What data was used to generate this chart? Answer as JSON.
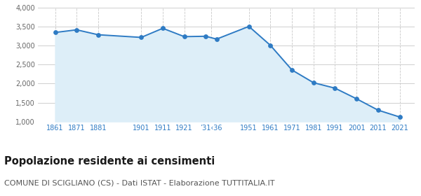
{
  "years": [
    1861,
    1871,
    1881,
    1901,
    1911,
    1921,
    1931,
    1936,
    1951,
    1961,
    1971,
    1981,
    1991,
    2001,
    2011,
    2021
  ],
  "population": [
    3350,
    3420,
    3290,
    3220,
    3460,
    3240,
    3250,
    3175,
    3510,
    3010,
    2360,
    2025,
    1880,
    1600,
    1300,
    1120
  ],
  "x_tick_positions": [
    1861,
    1871,
    1881,
    1901,
    1911,
    1921,
    1933.5,
    1951,
    1961,
    1971,
    1981,
    1991,
    2001,
    2011,
    2021
  ],
  "x_tick_labels": [
    "1861",
    "1871",
    "1881",
    "1901",
    "1911",
    "1921",
    "’31‹36",
    "1951",
    "1961",
    "1971",
    "1981",
    "1991",
    "2001",
    "2011",
    "2021"
  ],
  "line_color": "#2e7bc4",
  "fill_color": "#ddeef8",
  "marker_color": "#2e7bc4",
  "background_color": "#ffffff",
  "grid_color": "#c8c8c8",
  "xlim": [
    1853,
    2028
  ],
  "ylim": [
    1000,
    4000
  ],
  "yticks": [
    1000,
    1500,
    2000,
    2500,
    3000,
    3500,
    4000
  ],
  "ytick_labels": [
    "1,000",
    "1,500",
    "2,000",
    "2,500",
    "3,000",
    "3,500",
    "4,000"
  ],
  "title": "Popolazione residente ai censimenti",
  "subtitle": "COMUNE DI SCIGLIANO (CS) - Dati ISTAT - Elaborazione TUTTITALIA.IT",
  "title_fontsize": 10.5,
  "subtitle_fontsize": 8,
  "tick_fontsize": 7,
  "ytick_fontsize": 7,
  "xtick_color": "#2e7bc4",
  "ytick_color": "#666666"
}
